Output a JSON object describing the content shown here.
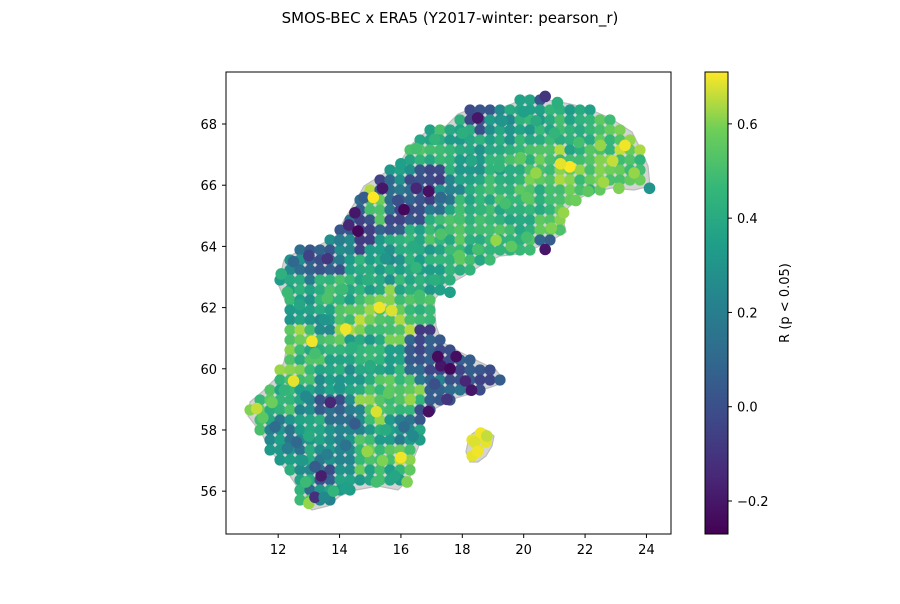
{
  "chart_data": {
    "type": "scatter",
    "title": "SMOS-BEC x ERA5 (Y2017-winter: pearson_r)",
    "xlabel": "",
    "ylabel": "",
    "xlim": [
      10.3,
      24.8
    ],
    "ylim": [
      54.6,
      69.7
    ],
    "x_ticks": [
      "12",
      "14",
      "16",
      "18",
      "20",
      "22",
      "24"
    ],
    "y_ticks": [
      "56",
      "58",
      "60",
      "62",
      "64",
      "66",
      "68"
    ],
    "grid": false,
    "colormap": "viridis",
    "colorbar": {
      "label": "R (p < 0.05)",
      "range": [
        -0.27,
        0.71
      ],
      "ticks": [
        "−0.2",
        "0.0",
        "0.2",
        "0.4",
        "0.6"
      ]
    },
    "land_outline_color": "#c0c0c0",
    "points_note_ref": "grid cells colored by Pearson R",
    "points": [
      {
        "x": 13.0,
        "y": 55.6,
        "r": 0.62
      },
      {
        "x": 13.2,
        "y": 55.8,
        "r": -0.12
      },
      {
        "x": 13.5,
        "y": 55.8,
        "r": 0.25
      },
      {
        "x": 13.8,
        "y": 56.0,
        "r": 0.45
      },
      {
        "x": 14.2,
        "y": 56.1,
        "r": 0.35
      },
      {
        "x": 12.9,
        "y": 56.3,
        "r": 0.48
      },
      {
        "x": 13.4,
        "y": 56.5,
        "r": -0.18
      },
      {
        "x": 13.2,
        "y": 56.8,
        "r": 0.05
      },
      {
        "x": 12.8,
        "y": 57.0,
        "r": 0.32
      },
      {
        "x": 12.3,
        "y": 57.4,
        "r": 0.2
      },
      {
        "x": 12.6,
        "y": 57.6,
        "r": 0.1
      },
      {
        "x": 13.0,
        "y": 57.8,
        "r": 0.4
      },
      {
        "x": 11.9,
        "y": 58.1,
        "r": 0.12
      },
      {
        "x": 11.5,
        "y": 58.4,
        "r": 0.55
      },
      {
        "x": 11.3,
        "y": 58.7,
        "r": 0.66
      },
      {
        "x": 11.8,
        "y": 58.9,
        "r": 0.58
      },
      {
        "x": 12.2,
        "y": 59.3,
        "r": 0.45
      },
      {
        "x": 12.5,
        "y": 59.6,
        "r": 0.69
      },
      {
        "x": 13.1,
        "y": 60.9,
        "r": 0.7
      },
      {
        "x": 13.7,
        "y": 58.9,
        "r": -0.15
      },
      {
        "x": 14.0,
        "y": 59.4,
        "r": 0.3
      },
      {
        "x": 14.5,
        "y": 58.2,
        "r": 0.05
      },
      {
        "x": 14.9,
        "y": 57.3,
        "r": 0.62
      },
      {
        "x": 15.4,
        "y": 57.0,
        "r": 0.6
      },
      {
        "x": 15.8,
        "y": 56.5,
        "r": 0.38
      },
      {
        "x": 16.2,
        "y": 56.3,
        "r": 0.6
      },
      {
        "x": 16.0,
        "y": 57.1,
        "r": 0.7
      },
      {
        "x": 15.5,
        "y": 58.0,
        "r": 0.4
      },
      {
        "x": 15.2,
        "y": 58.6,
        "r": 0.68
      },
      {
        "x": 15.6,
        "y": 59.2,
        "r": 0.55
      },
      {
        "x": 16.3,
        "y": 59.0,
        "r": 0.62
      },
      {
        "x": 16.9,
        "y": 58.6,
        "r": -0.22
      },
      {
        "x": 17.1,
        "y": 59.5,
        "r": 0.0
      },
      {
        "x": 17.3,
        "y": 60.1,
        "r": -0.2
      },
      {
        "x": 17.6,
        "y": 60.0,
        "r": -0.25
      },
      {
        "x": 17.2,
        "y": 60.4,
        "r": -0.24
      },
      {
        "x": 17.8,
        "y": 60.4,
        "r": -0.23
      },
      {
        "x": 18.1,
        "y": 59.6,
        "r": -0.15
      },
      {
        "x": 18.3,
        "y": 59.3,
        "r": -0.2
      },
      {
        "x": 17.5,
        "y": 59.0,
        "r": -0.1
      },
      {
        "x": 18.6,
        "y": 57.9,
        "r": 0.7
      },
      {
        "x": 18.4,
        "y": 57.6,
        "r": 0.68
      },
      {
        "x": 18.8,
        "y": 57.8,
        "r": 0.66
      },
      {
        "x": 18.5,
        "y": 57.3,
        "r": 0.7
      },
      {
        "x": 16.4,
        "y": 57.8,
        "r": 0.25
      },
      {
        "x": 15.0,
        "y": 60.1,
        "r": 0.4
      },
      {
        "x": 14.4,
        "y": 60.7,
        "r": 0.42
      },
      {
        "x": 14.2,
        "y": 61.3,
        "r": 0.7
      },
      {
        "x": 13.5,
        "y": 61.6,
        "r": 0.3
      },
      {
        "x": 12.7,
        "y": 62.1,
        "r": 0.38
      },
      {
        "x": 12.3,
        "y": 62.5,
        "r": 0.48
      },
      {
        "x": 12.1,
        "y": 63.1,
        "r": 0.43
      },
      {
        "x": 12.5,
        "y": 63.5,
        "r": 0.1
      },
      {
        "x": 13.0,
        "y": 63.7,
        "r": -0.05
      },
      {
        "x": 13.6,
        "y": 63.6,
        "r": -0.1
      },
      {
        "x": 14.0,
        "y": 64.2,
        "r": 0.2
      },
      {
        "x": 14.3,
        "y": 64.7,
        "r": -0.15
      },
      {
        "x": 14.5,
        "y": 65.1,
        "r": -0.2
      },
      {
        "x": 14.6,
        "y": 64.5,
        "r": -0.25
      },
      {
        "x": 14.8,
        "y": 65.6,
        "r": 0.05
      },
      {
        "x": 15.1,
        "y": 65.6,
        "r": 0.71
      },
      {
        "x": 15.4,
        "y": 65.9,
        "r": -0.2
      },
      {
        "x": 15.9,
        "y": 65.5,
        "r": 0.0
      },
      {
        "x": 16.1,
        "y": 65.2,
        "r": -0.25
      },
      {
        "x": 16.5,
        "y": 65.9,
        "r": -0.15
      },
      {
        "x": 16.9,
        "y": 65.8,
        "r": -0.22
      },
      {
        "x": 17.3,
        "y": 65.6,
        "r": 0.1
      },
      {
        "x": 15.3,
        "y": 62.0,
        "r": 0.7
      },
      {
        "x": 15.7,
        "y": 61.9,
        "r": 0.68
      },
      {
        "x": 16.6,
        "y": 62.4,
        "r": 0.5
      },
      {
        "x": 17.1,
        "y": 62.9,
        "r": 0.42
      },
      {
        "x": 17.6,
        "y": 62.5,
        "r": 0.35
      },
      {
        "x": 16.5,
        "y": 63.3,
        "r": 0.45
      },
      {
        "x": 17.9,
        "y": 63.7,
        "r": 0.55
      },
      {
        "x": 18.5,
        "y": 63.9,
        "r": 0.5
      },
      {
        "x": 19.1,
        "y": 64.2,
        "r": 0.62
      },
      {
        "x": 19.6,
        "y": 64.0,
        "r": 0.55
      },
      {
        "x": 20.1,
        "y": 64.3,
        "r": 0.5
      },
      {
        "x": 20.7,
        "y": 63.9,
        "r": -0.2
      },
      {
        "x": 20.9,
        "y": 64.6,
        "r": 0.6
      },
      {
        "x": 21.3,
        "y": 65.1,
        "r": 0.62
      },
      {
        "x": 21.7,
        "y": 65.5,
        "r": 0.58
      },
      {
        "x": 22.1,
        "y": 65.8,
        "r": 0.55
      },
      {
        "x": 22.6,
        "y": 66.1,
        "r": 0.63
      },
      {
        "x": 23.1,
        "y": 65.9,
        "r": 0.6
      },
      {
        "x": 23.6,
        "y": 66.4,
        "r": 0.62
      },
      {
        "x": 24.1,
        "y": 65.9,
        "r": 0.3
      },
      {
        "x": 21.5,
        "y": 66.6,
        "r": 0.71
      },
      {
        "x": 21.2,
        "y": 66.7,
        "r": 0.69
      },
      {
        "x": 22.9,
        "y": 66.8,
        "r": 0.66
      },
      {
        "x": 23.3,
        "y": 67.3,
        "r": 0.7
      },
      {
        "x": 22.5,
        "y": 67.3,
        "r": 0.62
      },
      {
        "x": 21.8,
        "y": 67.4,
        "r": 0.5
      },
      {
        "x": 21.0,
        "y": 67.7,
        "r": 0.45
      },
      {
        "x": 20.4,
        "y": 68.1,
        "r": 0.4
      },
      {
        "x": 20.0,
        "y": 68.4,
        "r": 0.35
      },
      {
        "x": 20.7,
        "y": 68.9,
        "r": -0.1
      },
      {
        "x": 21.1,
        "y": 68.7,
        "r": 0.42
      },
      {
        "x": 19.3,
        "y": 68.1,
        "r": 0.3
      },
      {
        "x": 18.5,
        "y": 68.2,
        "r": -0.2
      },
      {
        "x": 18.0,
        "y": 67.7,
        "r": 0.42
      },
      {
        "x": 17.1,
        "y": 67.5,
        "r": 0.45
      },
      {
        "x": 16.5,
        "y": 67.2,
        "r": 0.5
      },
      {
        "x": 16.0,
        "y": 66.7,
        "r": 0.35
      },
      {
        "x": 18.3,
        "y": 66.8,
        "r": 0.38
      },
      {
        "x": 19.2,
        "y": 66.6,
        "r": 0.45
      },
      {
        "x": 19.9,
        "y": 66.9,
        "r": 0.55
      },
      {
        "x": 20.4,
        "y": 66.4,
        "r": 0.62
      },
      {
        "x": 20.1,
        "y": 65.6,
        "r": 0.55
      },
      {
        "x": 19.4,
        "y": 65.4,
        "r": 0.5
      },
      {
        "x": 18.6,
        "y": 65.2,
        "r": 0.45
      },
      {
        "x": 17.9,
        "y": 64.9,
        "r": 0.5
      },
      {
        "x": 17.3,
        "y": 64.4,
        "r": 0.52
      },
      {
        "x": 16.4,
        "y": 64.0,
        "r": 0.4
      },
      {
        "x": 15.5,
        "y": 63.6,
        "r": 0.3
      },
      {
        "x": 14.9,
        "y": 62.9,
        "r": 0.42
      },
      {
        "x": 14.1,
        "y": 62.6,
        "r": 0.48
      },
      {
        "x": 13.6,
        "y": 62.3,
        "r": 0.52
      },
      {
        "x": 13.2,
        "y": 60.5,
        "r": 0.5
      },
      {
        "x": 12.9,
        "y": 59.1,
        "r": 0.25
      },
      {
        "x": 14.2,
        "y": 57.5,
        "r": 0.15
      },
      {
        "x": 13.6,
        "y": 57.2,
        "r": 0.2
      },
      {
        "x": 15.2,
        "y": 56.3,
        "r": 0.5
      },
      {
        "x": 16.1,
        "y": 58.1,
        "r": 0.12
      }
    ]
  }
}
